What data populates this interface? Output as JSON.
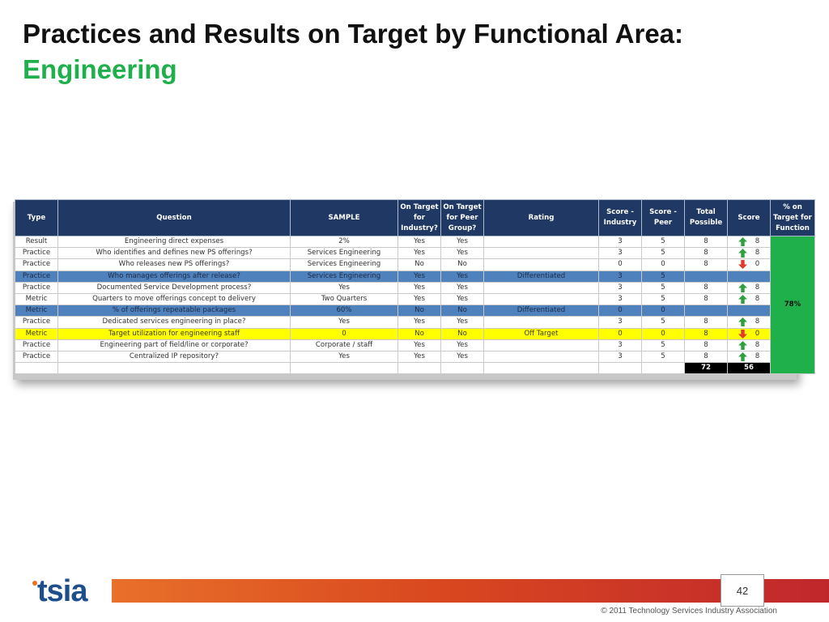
{
  "title": {
    "prefix": "Practices and Results on Target by Functional Area:",
    "highlight": "Engineering"
  },
  "colors": {
    "header_bg": "#1f3864",
    "title_accent": "#1fb04b",
    "blue_highlight": "#4f81bd",
    "yellow_highlight": "#ffff00",
    "pct_cell": "#1fb04b",
    "arrow_up": "#2e9e3e",
    "arrow_down": "#e23b2e"
  },
  "table": {
    "headers": [
      "Type",
      "Question",
      "SAMPLE",
      "On Target for Industry?",
      "On Target for Peer Group?",
      "Rating",
      "Score - Industry",
      "Score - Peer",
      "Total Possible",
      "Score",
      "% on Target for Function"
    ],
    "rows": [
      {
        "type": "Result",
        "question": "Engineering direct expenses",
        "sample": "2%",
        "ind": "Yes",
        "peer": "Yes",
        "rating": "",
        "score_ind": "3",
        "score_peer": "5",
        "total": "8",
        "arrow": "up",
        "score": "8",
        "highlight": ""
      },
      {
        "type": "Practice",
        "question": "Who identifies and defines new PS offerings?",
        "sample": "Services Engineering",
        "ind": "Yes",
        "peer": "Yes",
        "rating": "",
        "score_ind": "3",
        "score_peer": "5",
        "total": "8",
        "arrow": "up",
        "score": "8",
        "highlight": ""
      },
      {
        "type": "Practice",
        "question": "Who releases new PS offerings?",
        "sample": "Services Engineering",
        "ind": "No",
        "peer": "No",
        "rating": "",
        "score_ind": "0",
        "score_peer": "0",
        "total": "8",
        "arrow": "down",
        "score": "0",
        "highlight": ""
      },
      {
        "type": "Practice",
        "question": "Who manages offerings after release?",
        "sample": "Services Engineering",
        "ind": "Yes",
        "peer": "Yes",
        "rating": "Differentiated",
        "score_ind": "3",
        "score_peer": "5",
        "total": "",
        "arrow": "",
        "score": "",
        "highlight": "blue"
      },
      {
        "type": "Practice",
        "question": "Documented Service Development process?",
        "sample": "Yes",
        "ind": "Yes",
        "peer": "Yes",
        "rating": "",
        "score_ind": "3",
        "score_peer": "5",
        "total": "8",
        "arrow": "up",
        "score": "8",
        "highlight": ""
      },
      {
        "type": "Metric",
        "question": "Quarters to move offerings concept to delivery",
        "sample": "Two Quarters",
        "ind": "Yes",
        "peer": "Yes",
        "rating": "",
        "score_ind": "3",
        "score_peer": "5",
        "total": "8",
        "arrow": "up",
        "score": "8",
        "highlight": ""
      },
      {
        "type": "Metric",
        "question": "% of offerings repeatable packages",
        "sample": "60%",
        "ind": "No",
        "peer": "No",
        "rating": "Differentiated",
        "score_ind": "0",
        "score_peer": "0",
        "total": "",
        "arrow": "",
        "score": "",
        "highlight": "blue"
      },
      {
        "type": "Practice",
        "question": "Dedicated services engineering in place?",
        "sample": "Yes",
        "ind": "Yes",
        "peer": "Yes",
        "rating": "",
        "score_ind": "3",
        "score_peer": "5",
        "total": "8",
        "arrow": "up",
        "score": "8",
        "highlight": ""
      },
      {
        "type": "Metric",
        "question": "Target utilization for engineering staff",
        "sample": "0",
        "ind": "No",
        "peer": "No",
        "rating": "Off Target",
        "score_ind": "0",
        "score_peer": "0",
        "total": "8",
        "arrow": "down",
        "score": "0",
        "highlight": "yellow"
      },
      {
        "type": "Practice",
        "question": "Engineering part of field/line or corporate?",
        "sample": "Corporate / staff",
        "ind": "Yes",
        "peer": "Yes",
        "rating": "",
        "score_ind": "3",
        "score_peer": "5",
        "total": "8",
        "arrow": "up",
        "score": "8",
        "highlight": ""
      },
      {
        "type": "Practice",
        "question": "Centralized IP repository?",
        "sample": "Yes",
        "ind": "Yes",
        "peer": "Yes",
        "rating": "",
        "score_ind": "3",
        "score_peer": "5",
        "total": "8",
        "arrow": "up",
        "score": "8",
        "highlight": ""
      }
    ],
    "totals": {
      "total_possible": "72",
      "score": "56"
    },
    "pct_on_target": "78%"
  },
  "footer": {
    "logo_text": "tsia",
    "page_number": "42",
    "copyright": "© 2011 Technology Services Industry Association"
  }
}
